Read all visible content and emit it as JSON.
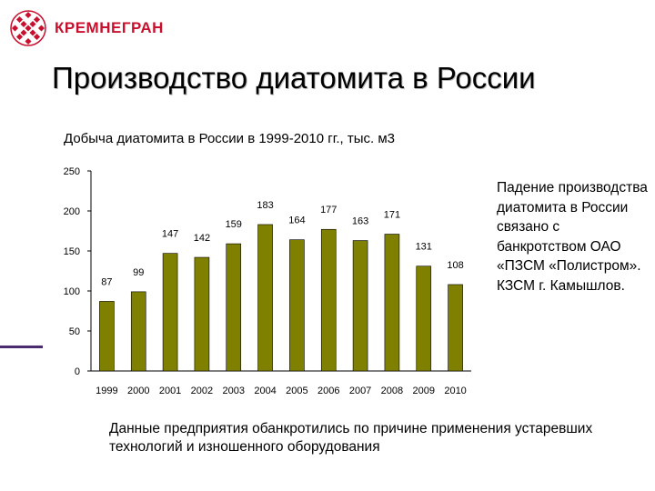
{
  "logo": {
    "text": "КРЕМНЕГРАН",
    "color": "#c8102e",
    "icon": "sphere-grid-icon"
  },
  "page": {
    "title": "Производство диатомита в России"
  },
  "chart_data": {
    "type": "bar",
    "title": "Добыча диатомита в России в 1999-2010 гг., тыс. м3",
    "categories": [
      "1999",
      "2000",
      "2001",
      "2002",
      "2003",
      "2004",
      "2005",
      "2006",
      "2007",
      "2008",
      "2009",
      "2010"
    ],
    "values": [
      87,
      99,
      147,
      142,
      159,
      183,
      164,
      177,
      163,
      171,
      131,
      108
    ],
    "ylim": [
      0,
      250
    ],
    "yticks": [
      0,
      50,
      100,
      150,
      200,
      250
    ],
    "xlabel": "",
    "ylabel": "",
    "grid": false,
    "bar_color": "#7f7f00",
    "data_labels": true
  },
  "side_note": "Падение производства диатомита в России связано с банкротством ОАО «ПЗСМ «Полистром». КЗСМ г. Камышлов.",
  "bottom_note": "Данные предприятия обанкротились по причине применения устаревших технологий и изношенного оборудования"
}
